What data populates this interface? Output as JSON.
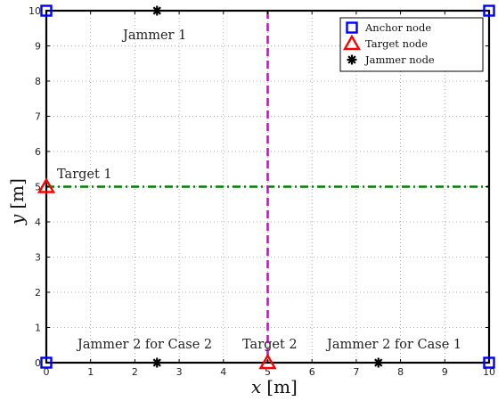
{
  "chart_data": {
    "type": "scatter",
    "xlabel_var": "x",
    "xlabel_unit": "[m]",
    "ylabel_var": "y",
    "ylabel_unit": "[m]",
    "xlim": [
      0,
      10
    ],
    "ylim": [
      0,
      10
    ],
    "xticks": [
      "0",
      "1",
      "2",
      "3",
      "4",
      "5",
      "6",
      "7",
      "8",
      "9",
      "10"
    ],
    "yticks": [
      "0",
      "1",
      "2",
      "3",
      "4",
      "5",
      "6",
      "7",
      "8",
      "9",
      "10"
    ],
    "grid": true,
    "legend_position": "top-right",
    "series": [
      {
        "name": "Anchor node",
        "marker": "square",
        "color": "#0000ff",
        "points": [
          [
            0,
            0
          ],
          [
            0,
            10
          ],
          [
            10,
            10
          ],
          [
            10,
            0
          ]
        ]
      },
      {
        "name": "Target node",
        "marker": "triangle",
        "color": "#ff0000",
        "points": [
          [
            0,
            5
          ],
          [
            5,
            0
          ]
        ]
      },
      {
        "name": "Jammer node",
        "marker": "asterisk",
        "color": "#000000",
        "points": [
          [
            2.5,
            10
          ],
          [
            2.5,
            0
          ],
          [
            7.5,
            0
          ]
        ]
      }
    ],
    "lines": [
      {
        "orientation": "horizontal",
        "value": 5,
        "color": "#008000",
        "style": "dashdot"
      },
      {
        "orientation": "vertical",
        "value": 5,
        "color": "#e000e0",
        "style": "dashed"
      }
    ],
    "annotations": {
      "jammer1": "Jammer 1",
      "target1": "Target 1",
      "target2": "Target 2",
      "jammer2_case2": "Jammer 2 for Case 2",
      "jammer2_case1": "Jammer 2 for Case 1"
    }
  }
}
